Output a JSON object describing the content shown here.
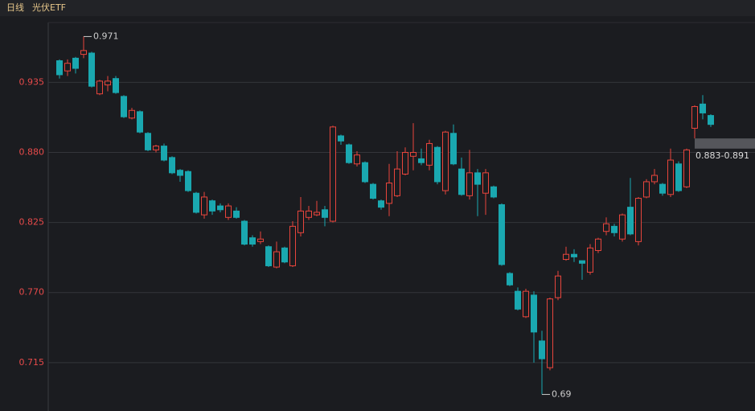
{
  "header": {
    "period": "日线",
    "name": "光伏ETF"
  },
  "chart_data": {
    "type": "candlestick",
    "ylim": [
      0.677,
      0.982
    ],
    "yticks": [
      {
        "value": 0.715,
        "label": "0.715"
      },
      {
        "value": 0.77,
        "label": "0.770"
      },
      {
        "value": 0.825,
        "label": "0.825"
      },
      {
        "value": 0.88,
        "label": "0.880"
      },
      {
        "value": 0.935,
        "label": "0.935"
      }
    ],
    "grid": true,
    "up_color": "#e8453c",
    "down_color": "#1aa8b0",
    "open": [
      0.952,
      0.944,
      0.954,
      0.957,
      0.958,
      0.926,
      0.933,
      0.938,
      0.924,
      0.907,
      0.912,
      0.895,
      0.882,
      0.885,
      0.876,
      0.866,
      0.865,
      0.848,
      0.831,
      0.842,
      0.838,
      0.829,
      0.834,
      0.826,
      0.813,
      0.81,
      0.806,
      0.79,
      0.805,
      0.791,
      0.817,
      0.829,
      0.831,
      0.835,
      0.826,
      0.893,
      0.886,
      0.871,
      0.872,
      0.855,
      0.842,
      0.84,
      0.846,
      0.863,
      0.877,
      0.875,
      0.87,
      0.884,
      0.85,
      0.895,
      0.867,
      0.846,
      0.864,
      0.848,
      0.853,
      0.839,
      0.785,
      0.771,
      0.751,
      0.768,
      0.732,
      0.711,
      0.766,
      0.796,
      0.8,
      0.795,
      0.786,
      0.803,
      0.818,
      0.822,
      0.812,
      0.837,
      0.81,
      0.845,
      0.857,
      0.855,
      0.847,
      0.871,
      0.853,
      0.899,
      0.918,
      0.909
    ],
    "high": [
      0.953,
      0.953,
      0.955,
      0.971,
      0.959,
      0.937,
      0.94,
      0.94,
      0.925,
      0.915,
      0.913,
      0.896,
      0.886,
      0.887,
      0.877,
      0.867,
      0.866,
      0.849,
      0.849,
      0.843,
      0.84,
      0.84,
      0.837,
      0.827,
      0.815,
      0.818,
      0.807,
      0.81,
      0.806,
      0.826,
      0.845,
      0.838,
      0.842,
      0.838,
      0.901,
      0.894,
      0.887,
      0.881,
      0.873,
      0.856,
      0.843,
      0.871,
      0.881,
      0.884,
      0.903,
      0.883,
      0.89,
      0.885,
      0.897,
      0.902,
      0.876,
      0.882,
      0.867,
      0.867,
      0.854,
      0.84,
      0.786,
      0.774,
      0.773,
      0.771,
      0.74,
      0.766,
      0.787,
      0.806,
      0.804,
      0.795,
      0.808,
      0.813,
      0.829,
      0.824,
      0.832,
      0.86,
      0.845,
      0.859,
      0.867,
      0.856,
      0.883,
      0.873,
      0.883,
      0.917,
      0.925,
      0.91
    ],
    "low": [
      0.938,
      0.94,
      0.942,
      0.954,
      0.931,
      0.925,
      0.928,
      0.926,
      0.907,
      0.906,
      0.895,
      0.881,
      0.88,
      0.873,
      0.863,
      0.857,
      0.849,
      0.832,
      0.828,
      0.831,
      0.833,
      0.827,
      0.828,
      0.807,
      0.806,
      0.808,
      0.79,
      0.789,
      0.793,
      0.79,
      0.814,
      0.827,
      0.83,
      0.822,
      0.825,
      0.886,
      0.871,
      0.869,
      0.856,
      0.843,
      0.835,
      0.83,
      0.845,
      0.862,
      0.866,
      0.87,
      0.866,
      0.855,
      0.847,
      0.87,
      0.846,
      0.843,
      0.83,
      0.831,
      0.844,
      0.791,
      0.775,
      0.756,
      0.75,
      0.715,
      0.69,
      0.709,
      0.764,
      0.795,
      0.794,
      0.78,
      0.784,
      0.801,
      0.815,
      0.814,
      0.81,
      0.815,
      0.807,
      0.844,
      0.855,
      0.846,
      0.845,
      0.849,
      0.852,
      0.891,
      0.906,
      0.9
    ],
    "close": [
      0.941,
      0.95,
      0.946,
      0.96,
      0.932,
      0.936,
      0.936,
      0.927,
      0.908,
      0.913,
      0.896,
      0.882,
      0.885,
      0.874,
      0.864,
      0.862,
      0.85,
      0.833,
      0.845,
      0.834,
      0.835,
      0.838,
      0.829,
      0.808,
      0.808,
      0.812,
      0.791,
      0.802,
      0.794,
      0.822,
      0.834,
      0.834,
      0.833,
      0.829,
      0.9,
      0.889,
      0.872,
      0.878,
      0.857,
      0.844,
      0.837,
      0.856,
      0.867,
      0.88,
      0.88,
      0.872,
      0.887,
      0.857,
      0.896,
      0.871,
      0.847,
      0.864,
      0.855,
      0.864,
      0.845,
      0.792,
      0.776,
      0.757,
      0.771,
      0.739,
      0.718,
      0.765,
      0.783,
      0.8,
      0.798,
      0.793,
      0.805,
      0.812,
      0.824,
      0.817,
      0.831,
      0.816,
      0.844,
      0.857,
      0.862,
      0.848,
      0.874,
      0.85,
      0.882,
      0.916,
      0.911,
      0.902
    ],
    "max_marker": 0.971,
    "min_marker": 0.69,
    "range_marker": {
      "label": "0.883-0.891",
      "low": 0.883,
      "high": 0.891
    }
  }
}
